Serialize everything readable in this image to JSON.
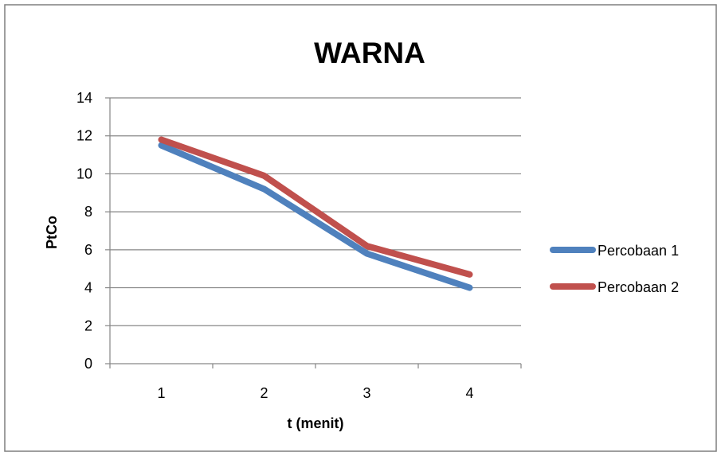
{
  "chart_data": {
    "type": "line",
    "title": "WARNA",
    "xlabel": "t (menit)",
    "ylabel": "PtCo",
    "categories": [
      "1",
      "2",
      "3",
      "4"
    ],
    "ylim": [
      0,
      14
    ],
    "yticks": [
      0,
      2,
      4,
      6,
      8,
      10,
      12,
      14
    ],
    "grid": true,
    "legend_position": "right",
    "series": [
      {
        "name": "Percobaan 1",
        "color": "#4f81bd",
        "values": [
          11.5,
          9.2,
          5.8,
          4.0
        ]
      },
      {
        "name": "Percobaan 2",
        "color": "#c0504d",
        "values": [
          11.8,
          9.9,
          6.2,
          4.7
        ]
      }
    ]
  }
}
